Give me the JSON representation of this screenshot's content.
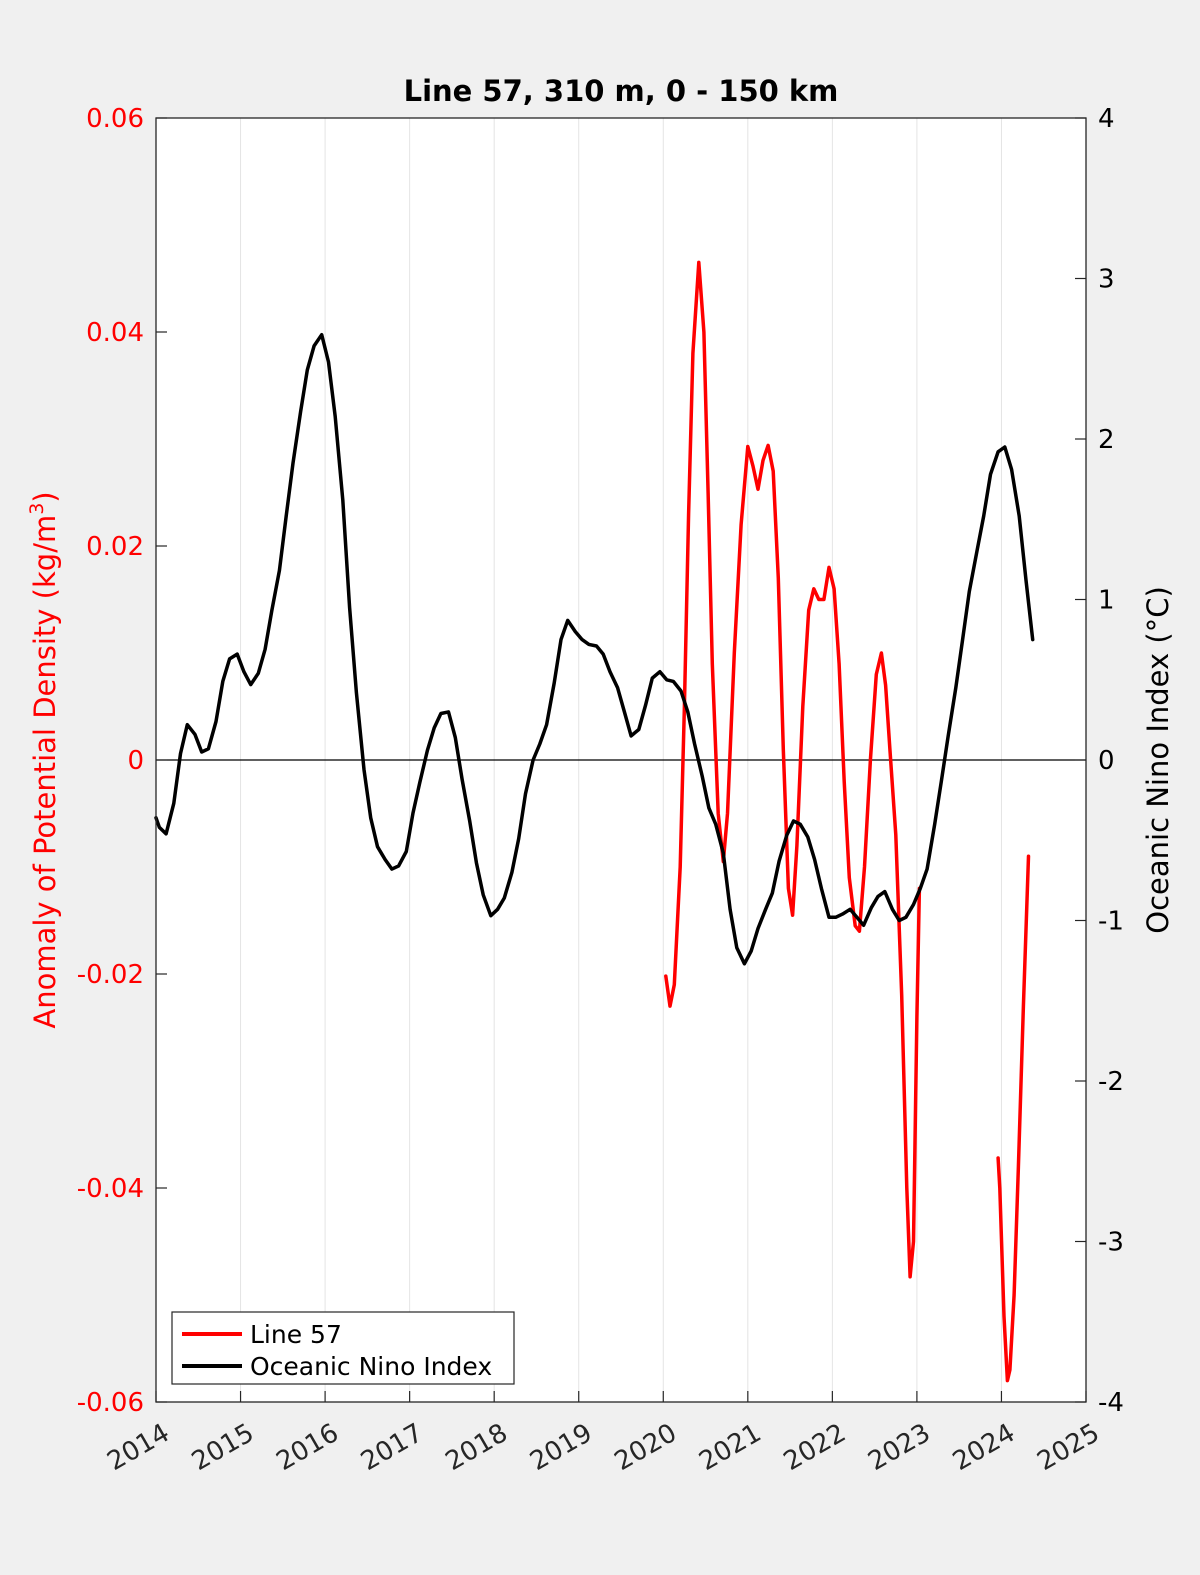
{
  "chart_data": {
    "type": "line",
    "title": "Line 57, 310 m, 0 - 150 km",
    "xlim": [
      2014,
      2025
    ],
    "x_ticks": [
      "2014",
      "2015",
      "2016",
      "2017",
      "2018",
      "2019",
      "2020",
      "2021",
      "2022",
      "2023",
      "2024",
      "2025"
    ],
    "x_grid": true,
    "y_left": {
      "label": "Anomaly of Potential Density (kg/m",
      "label_sup": "3",
      "label_end": ")",
      "lim": [
        -0.06,
        0.06
      ],
      "ticks": [
        "-0.06",
        "-0.04",
        "-0.02",
        "0",
        "0.02",
        "0.04",
        "0.06"
      ],
      "color": "#ff0000"
    },
    "y_right": {
      "label": "Oceanic Nino Index (°C)",
      "lim": [
        -4,
        4
      ],
      "ticks": [
        "-4",
        "-3",
        "-2",
        "-1",
        "0",
        "1",
        "2",
        "3",
        "4"
      ],
      "color": "#000000"
    },
    "zero_line": true,
    "legend_position": "bottom-left",
    "series": [
      {
        "name": "Line 57",
        "axis": "left",
        "color": "#ff0000",
        "segments": [
          [
            [
              2020.03,
              -0.0202
            ],
            [
              2020.08,
              -0.023
            ],
            [
              2020.13,
              -0.021
            ],
            [
              2020.2,
              -0.01
            ],
            [
              2020.25,
              0.005
            ],
            [
              2020.3,
              0.023
            ],
            [
              2020.35,
              0.038
            ],
            [
              2020.42,
              0.0465
            ],
            [
              2020.48,
              0.04
            ],
            [
              2020.53,
              0.025
            ],
            [
              2020.58,
              0.009
            ],
            [
              2020.65,
              -0.005
            ],
            [
              2020.71,
              -0.0095
            ],
            [
              2020.76,
              -0.005
            ],
            [
              2020.84,
              0.01
            ],
            [
              2020.92,
              0.022
            ],
            [
              2021.0,
              0.0293
            ],
            [
              2021.06,
              0.0275
            ],
            [
              2021.12,
              0.0253
            ],
            [
              2021.18,
              0.028
            ],
            [
              2021.24,
              0.0294
            ],
            [
              2021.3,
              0.027
            ],
            [
              2021.36,
              0.017
            ],
            [
              2021.42,
              0.001
            ],
            [
              2021.48,
              -0.012
            ],
            [
              2021.53,
              -0.0145
            ],
            [
              2021.58,
              -0.008
            ],
            [
              2021.65,
              0.005
            ],
            [
              2021.72,
              0.014
            ],
            [
              2021.78,
              0.016
            ],
            [
              2021.84,
              0.015
            ],
            [
              2021.9,
              0.015
            ],
            [
              2021.96,
              0.018
            ],
            [
              2022.02,
              0.016
            ],
            [
              2022.08,
              0.009
            ],
            [
              2022.14,
              -0.002
            ],
            [
              2022.2,
              -0.011
            ],
            [
              2022.27,
              -0.0155
            ],
            [
              2022.32,
              -0.016
            ],
            [
              2022.38,
              -0.01
            ],
            [
              2022.45,
              0.0
            ],
            [
              2022.52,
              0.008
            ],
            [
              2022.58,
              0.01
            ],
            [
              2022.63,
              0.007
            ],
            [
              2022.68,
              0.001
            ],
            [
              2022.75,
              -0.007
            ],
            [
              2022.82,
              -0.022
            ],
            [
              2022.88,
              -0.04
            ],
            [
              2022.92,
              -0.0483
            ],
            [
              2022.96,
              -0.045
            ],
            [
              2023.0,
              -0.024
            ],
            [
              2023.03,
              -0.012
            ]
          ],
          [
            [
              2023.96,
              -0.0372
            ],
            [
              2023.98,
              -0.04
            ],
            [
              2024.03,
              -0.052
            ],
            [
              2024.07,
              -0.058
            ],
            [
              2024.1,
              -0.057
            ],
            [
              2024.15,
              -0.05
            ],
            [
              2024.2,
              -0.038
            ],
            [
              2024.26,
              -0.023
            ],
            [
              2024.32,
              -0.009
            ]
          ]
        ]
      },
      {
        "name": "Oceanic Nino Index",
        "axis": "right",
        "color": "#000000",
        "segments": [
          [
            [
              2014.0,
              -0.36
            ],
            [
              2014.04,
              -0.42
            ],
            [
              2014.12,
              -0.46
            ],
            [
              2014.21,
              -0.27
            ],
            [
              2014.29,
              0.04
            ],
            [
              2014.37,
              0.22
            ],
            [
              2014.46,
              0.16
            ],
            [
              2014.54,
              0.05
            ],
            [
              2014.62,
              0.07
            ],
            [
              2014.71,
              0.24
            ],
            [
              2014.79,
              0.49
            ],
            [
              2014.87,
              0.63
            ],
            [
              2014.96,
              0.66
            ],
            [
              2015.04,
              0.55
            ],
            [
              2015.12,
              0.47
            ],
            [
              2015.21,
              0.54
            ],
            [
              2015.29,
              0.69
            ],
            [
              2015.37,
              0.93
            ],
            [
              2015.46,
              1.18
            ],
            [
              2015.54,
              1.52
            ],
            [
              2015.62,
              1.85
            ],
            [
              2015.71,
              2.17
            ],
            [
              2015.79,
              2.43
            ],
            [
              2015.87,
              2.58
            ],
            [
              2015.96,
              2.65
            ],
            [
              2016.04,
              2.48
            ],
            [
              2016.12,
              2.14
            ],
            [
              2016.21,
              1.62
            ],
            [
              2016.29,
              0.95
            ],
            [
              2016.37,
              0.42
            ],
            [
              2016.46,
              -0.06
            ],
            [
              2016.54,
              -0.36
            ],
            [
              2016.62,
              -0.54
            ],
            [
              2016.71,
              -0.62
            ],
            [
              2016.79,
              -0.68
            ],
            [
              2016.87,
              -0.66
            ],
            [
              2016.96,
              -0.57
            ],
            [
              2017.04,
              -0.33
            ],
            [
              2017.12,
              -0.14
            ],
            [
              2017.21,
              0.06
            ],
            [
              2017.29,
              0.2
            ],
            [
              2017.37,
              0.29
            ],
            [
              2017.46,
              0.3
            ],
            [
              2017.54,
              0.14
            ],
            [
              2017.62,
              -0.12
            ],
            [
              2017.71,
              -0.38
            ],
            [
              2017.79,
              -0.64
            ],
            [
              2017.87,
              -0.84
            ],
            [
              2017.96,
              -0.97
            ],
            [
              2018.04,
              -0.93
            ],
            [
              2018.12,
              -0.86
            ],
            [
              2018.21,
              -0.7
            ],
            [
              2018.29,
              -0.49
            ],
            [
              2018.37,
              -0.21
            ],
            [
              2018.46,
              0.0
            ],
            [
              2018.54,
              0.1
            ],
            [
              2018.62,
              0.22
            ],
            [
              2018.71,
              0.48
            ],
            [
              2018.79,
              0.75
            ],
            [
              2018.87,
              0.87
            ],
            [
              2018.96,
              0.8
            ],
            [
              2019.04,
              0.75
            ],
            [
              2019.12,
              0.72
            ],
            [
              2019.21,
              0.71
            ],
            [
              2019.29,
              0.66
            ],
            [
              2019.37,
              0.55
            ],
            [
              2019.46,
              0.45
            ],
            [
              2019.54,
              0.3
            ],
            [
              2019.62,
              0.15
            ],
            [
              2019.71,
              0.19
            ],
            [
              2019.79,
              0.34
            ],
            [
              2019.87,
              0.51
            ],
            [
              2019.96,
              0.55
            ],
            [
              2020.04,
              0.5
            ],
            [
              2020.12,
              0.49
            ],
            [
              2020.21,
              0.43
            ],
            [
              2020.29,
              0.3
            ],
            [
              2020.37,
              0.1
            ],
            [
              2020.46,
              -0.1
            ],
            [
              2020.54,
              -0.3
            ],
            [
              2020.62,
              -0.4
            ],
            [
              2020.71,
              -0.58
            ],
            [
              2020.79,
              -0.93
            ],
            [
              2020.87,
              -1.17
            ],
            [
              2020.96,
              -1.27
            ],
            [
              2021.04,
              -1.19
            ],
            [
              2021.12,
              -1.05
            ],
            [
              2021.21,
              -0.93
            ],
            [
              2021.29,
              -0.83
            ],
            [
              2021.37,
              -0.63
            ],
            [
              2021.46,
              -0.47
            ],
            [
              2021.54,
              -0.38
            ],
            [
              2021.62,
              -0.4
            ],
            [
              2021.71,
              -0.48
            ],
            [
              2021.79,
              -0.62
            ],
            [
              2021.87,
              -0.8
            ],
            [
              2021.96,
              -0.98
            ],
            [
              2022.04,
              -0.98
            ],
            [
              2022.12,
              -0.96
            ],
            [
              2022.21,
              -0.93
            ],
            [
              2022.29,
              -0.98
            ],
            [
              2022.37,
              -1.03
            ],
            [
              2022.46,
              -0.92
            ],
            [
              2022.54,
              -0.85
            ],
            [
              2022.62,
              -0.82
            ],
            [
              2022.71,
              -0.93
            ],
            [
              2022.79,
              -1.0
            ],
            [
              2022.87,
              -0.98
            ],
            [
              2022.96,
              -0.9
            ],
            [
              2023.04,
              -0.8
            ],
            [
              2023.12,
              -0.68
            ],
            [
              2023.21,
              -0.4
            ],
            [
              2023.29,
              -0.13
            ],
            [
              2023.37,
              0.15
            ],
            [
              2023.46,
              0.45
            ],
            [
              2023.54,
              0.75
            ],
            [
              2023.62,
              1.05
            ],
            [
              2023.71,
              1.3
            ],
            [
              2023.79,
              1.52
            ],
            [
              2023.87,
              1.78
            ],
            [
              2023.96,
              1.92
            ],
            [
              2024.04,
              1.95
            ],
            [
              2024.12,
              1.81
            ],
            [
              2024.21,
              1.52
            ],
            [
              2024.29,
              1.12
            ],
            [
              2024.37,
              0.75
            ]
          ]
        ]
      }
    ]
  }
}
